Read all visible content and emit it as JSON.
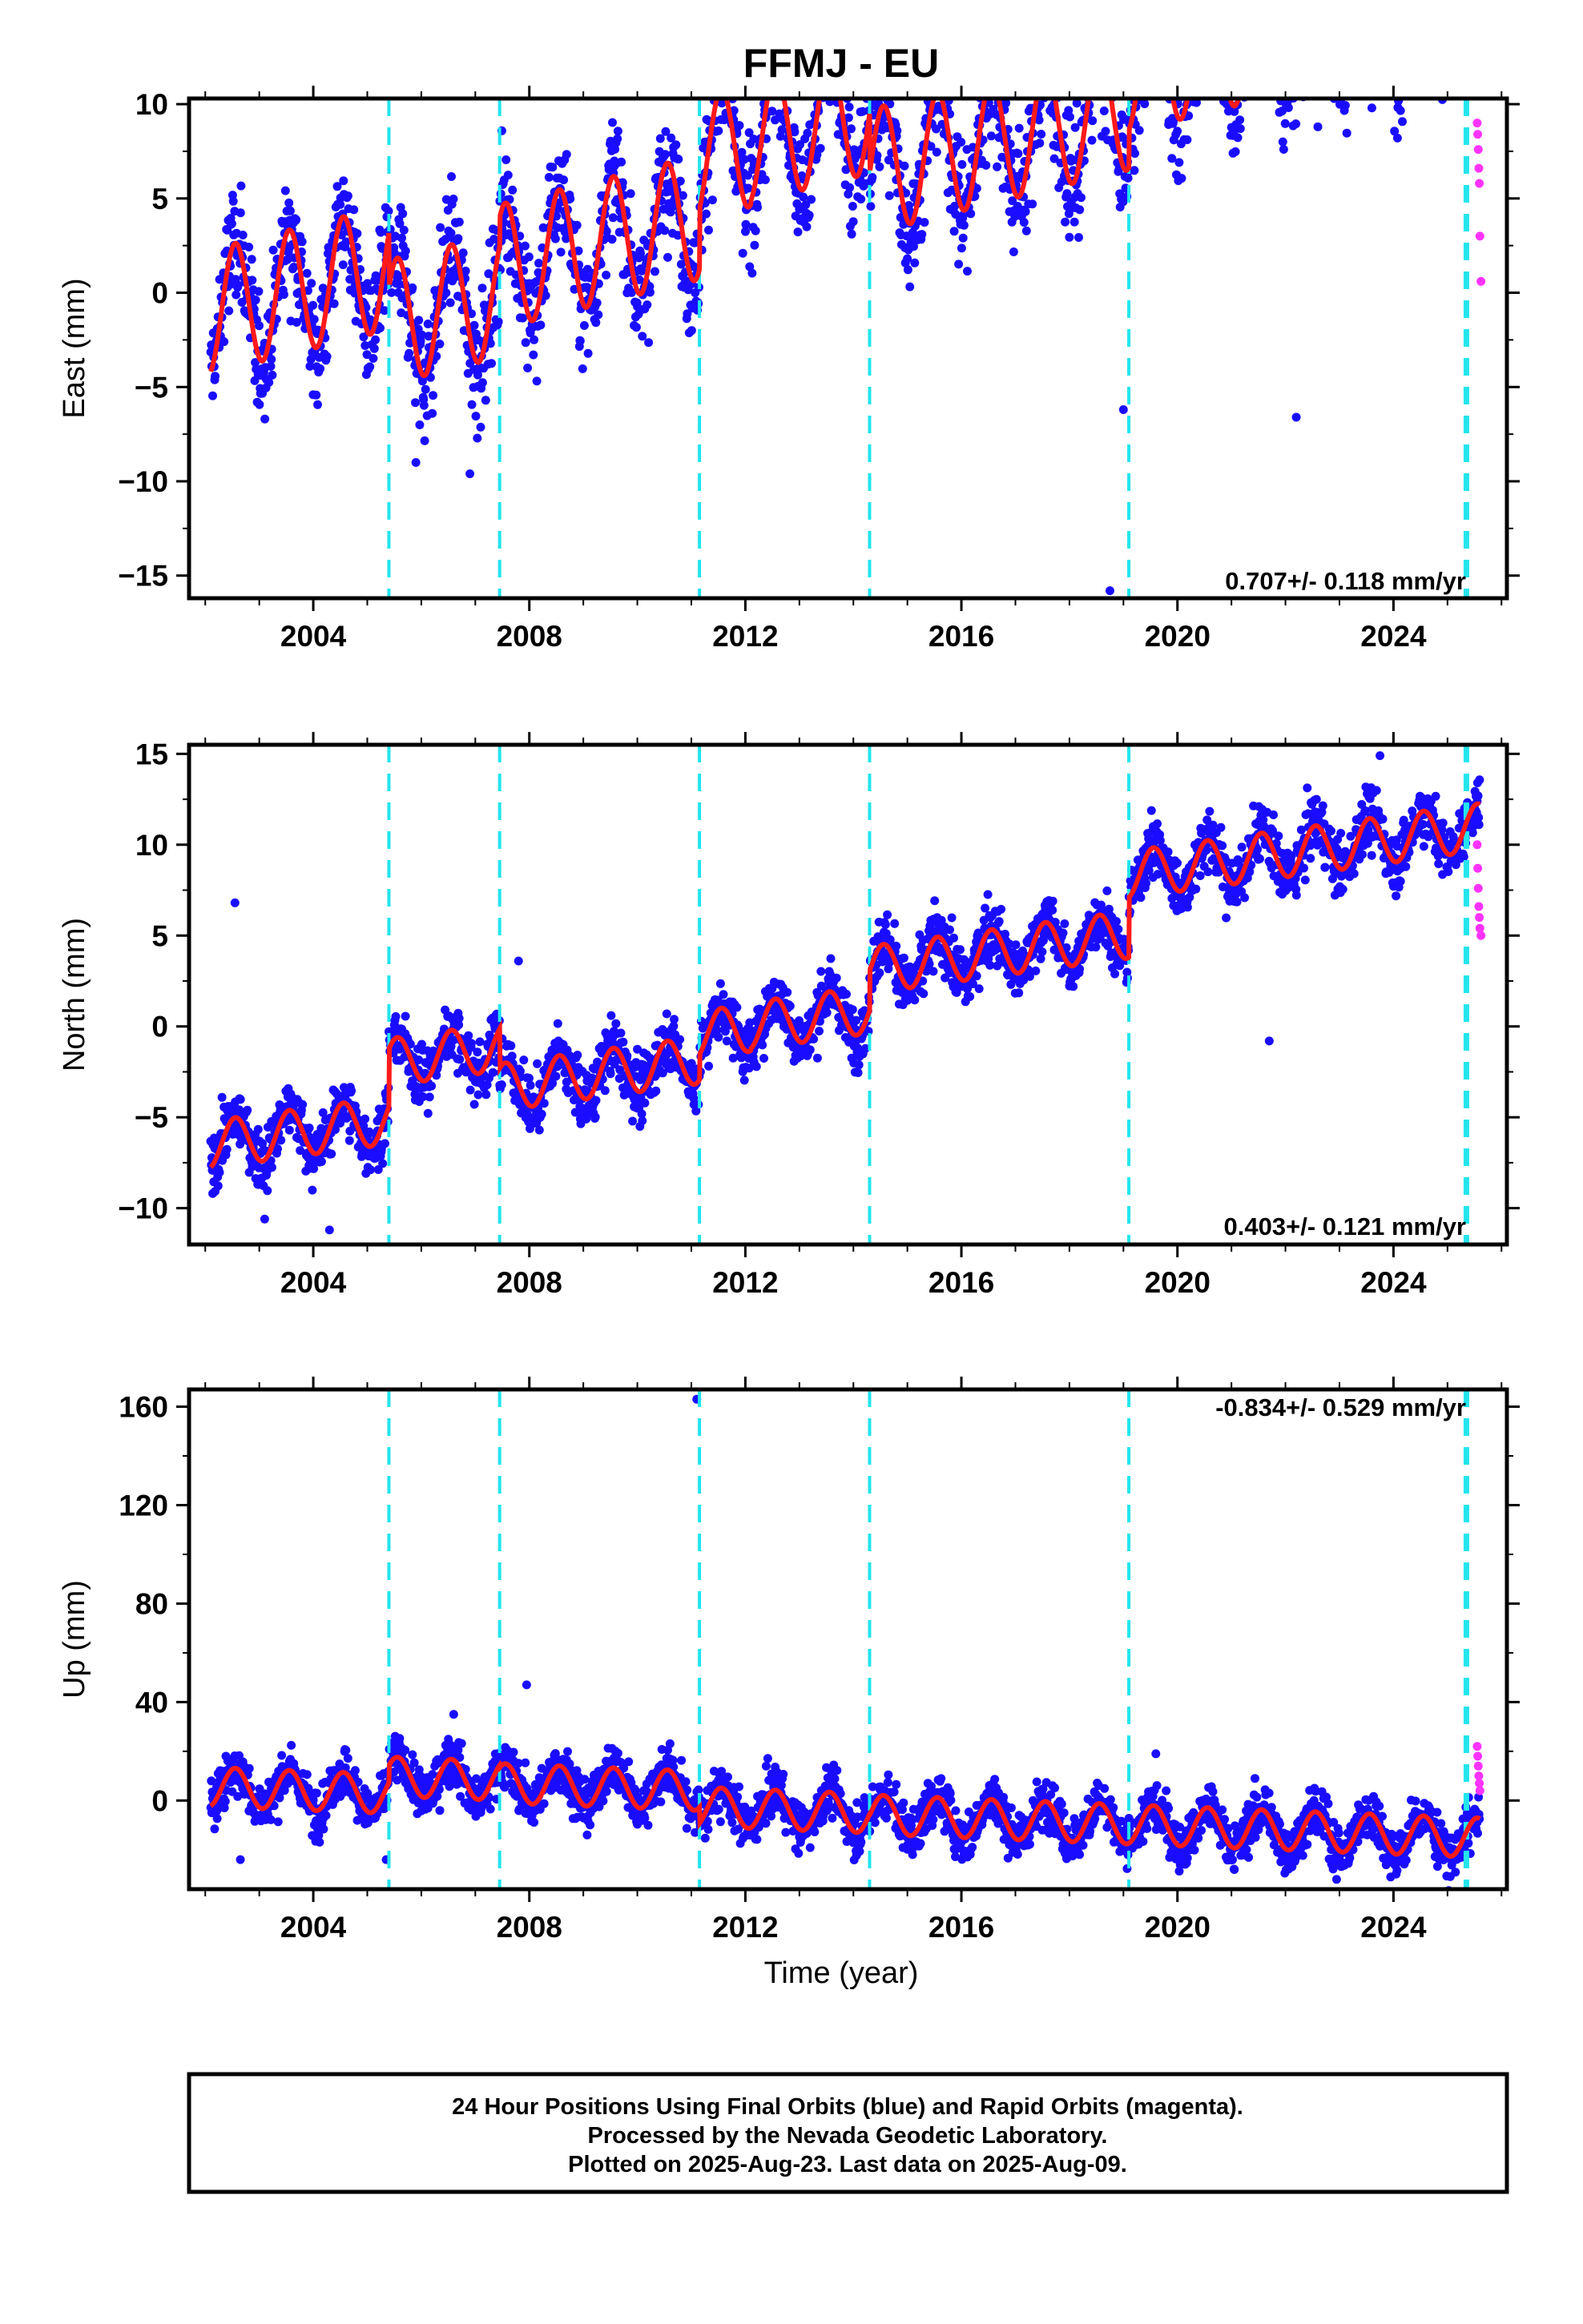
{
  "title": "FFMJ - EU",
  "xlabel": "Time (year)",
  "footer": {
    "line1": "24 Hour Positions Using Final Orbits (blue) and Rapid Orbits (magenta).",
    "line2": "Processed by the Nevada Geodetic Laboratory.",
    "line3": "Plotted on 2025-Aug-23. Last data on 2025-Aug-09."
  },
  "colors": {
    "final_points": "#1a0dff",
    "rapid_points": "#ff33ff",
    "model": "#ff1a1a",
    "events": "#22e5ee"
  },
  "chart_data": [
    {
      "type": "scatter",
      "ylabel": "East (mm)",
      "rate": "0.707+/- 0.118 mm/yr",
      "xlim": [
        2001.7,
        2026.1
      ],
      "ylim": [
        -16.2,
        10.3
      ],
      "yticks": [
        10,
        5,
        0,
        -5,
        -10,
        -15
      ],
      "yticklabels": [
        "10",
        "5",
        "0",
        "−5",
        "−10",
        "−15"
      ],
      "xticks": [
        2004,
        2008,
        2012,
        2016,
        2020,
        2024
      ],
      "xticklabels": [
        "2004",
        "2008",
        "2012",
        "2016",
        "2020",
        "2024"
      ],
      "events": [
        2005.4,
        2007.45,
        2011.15,
        2014.3,
        2019.1,
        2025.35
      ],
      "model": {
        "slope": 0.707,
        "amplitude": 3.3,
        "start": 2002.1,
        "end": 2025.6,
        "offsets": [
          [
            2002.1,
            -1.0
          ],
          [
            2005.4,
            -3.9
          ],
          [
            2007.45,
            -2.4
          ],
          [
            2011.15,
            0.8
          ],
          [
            2012.1,
            1.0
          ],
          [
            2014.3,
            -2.2
          ],
          [
            2019.1,
            -0.2
          ]
        ]
      },
      "outliers": [
        [
          2018.6,
          8.3
        ],
        [
          2018.75,
          -15.8
        ],
        [
          2022.2,
          -6.6
        ],
        [
          2023.6,
          9.8
        ],
        [
          2022.6,
          8.8
        ],
        [
          2019.0,
          -6.2
        ],
        [
          2005.9,
          -9.0
        ],
        [
          2006.9,
          -9.6
        ]
      ],
      "rapid": [
        [
          2025.55,
          9.0
        ],
        [
          2025.56,
          8.4
        ],
        [
          2025.57,
          7.6
        ],
        [
          2025.58,
          6.6
        ],
        [
          2025.59,
          5.8
        ],
        [
          2025.6,
          3.0
        ],
        [
          2025.62,
          0.6
        ]
      ]
    },
    {
      "type": "scatter",
      "ylabel": "North (mm)",
      "rate": "0.403+/- 0.121 mm/yr",
      "xlim": [
        2001.7,
        2026.1
      ],
      "ylim": [
        -12,
        15.5
      ],
      "yticks": [
        15,
        10,
        5,
        0,
        -5,
        -10
      ],
      "yticklabels": [
        "15",
        "10",
        "5",
        "0",
        "−5",
        "−10"
      ],
      "xticks": [
        2004,
        2008,
        2012,
        2016,
        2020,
        2024
      ],
      "xticklabels": [
        "2004",
        "2008",
        "2012",
        "2016",
        "2020",
        "2024"
      ],
      "events": [
        2005.4,
        2007.45,
        2011.15,
        2014.3,
        2019.1,
        2025.35
      ],
      "model": {
        "slope": 0.403,
        "amplitude": 1.3,
        "start": 2002.1,
        "end": 2025.6,
        "offsets": [
          [
            2002.1,
            -6.5
          ],
          [
            2005.4,
            -3.3
          ],
          [
            2007.45,
            -5.5
          ],
          [
            2011.15,
            -4.1
          ],
          [
            2012.1,
            -4.0
          ],
          [
            2014.3,
            -1.8
          ],
          [
            2019.1,
            1.5
          ]
        ]
      },
      "outliers": [
        [
          2002.55,
          6.8
        ],
        [
          2023.75,
          14.9
        ],
        [
          2019.55,
          11.0
        ],
        [
          2023.4,
          10.5
        ],
        [
          2004.3,
          -11.2
        ],
        [
          2003.1,
          -10.6
        ],
        [
          2007.8,
          3.6
        ],
        [
          2021.7,
          -0.8
        ]
      ],
      "rapid": [
        [
          2025.55,
          10.0
        ],
        [
          2025.56,
          8.7
        ],
        [
          2025.57,
          7.6
        ],
        [
          2025.58,
          6.6
        ],
        [
          2025.59,
          6.0
        ],
        [
          2025.6,
          5.4
        ],
        [
          2025.62,
          5.0
        ]
      ]
    },
    {
      "type": "scatter",
      "ylabel": "Up (mm)",
      "rate": "-0.834+/- 0.529 mm/yr",
      "xlim": [
        2001.7,
        2026.1
      ],
      "ylim": [
        -36,
        167
      ],
      "yticks": [
        160,
        120,
        80,
        40,
        0
      ],
      "yticklabels": [
        "160",
        "120",
        "80",
        "40",
        "0"
      ],
      "xticks": [
        2004,
        2008,
        2012,
        2016,
        2020,
        2024
      ],
      "xticklabels": [
        "2004",
        "2008",
        "2012",
        "2016",
        "2020",
        "2024"
      ],
      "events": [
        2005.4,
        2007.45,
        2011.15,
        2014.3,
        2019.1,
        2025.35
      ],
      "model": {
        "slope": -0.834,
        "amplitude": 8.0,
        "start": 2002.1,
        "end": 2025.6,
        "offsets": [
          [
            2002.1,
            5.5
          ],
          [
            2005.4,
            12.5
          ],
          [
            2007.45,
            11.5
          ],
          [
            2011.15,
            5.0
          ],
          [
            2014.3,
            4.5
          ],
          [
            2019.1,
            4.5
          ]
        ]
      },
      "outliers": [
        [
          2011.1,
          163
        ],
        [
          2007.95,
          47
        ],
        [
          2005.35,
          -24
        ],
        [
          2002.65,
          -24
        ],
        [
          2019.6,
          19
        ],
        [
          2006.6,
          35
        ]
      ],
      "rapid": [
        [
          2025.55,
          22
        ],
        [
          2025.56,
          18
        ],
        [
          2025.57,
          14
        ],
        [
          2025.58,
          10
        ],
        [
          2025.59,
          7
        ],
        [
          2025.6,
          4
        ]
      ]
    }
  ]
}
